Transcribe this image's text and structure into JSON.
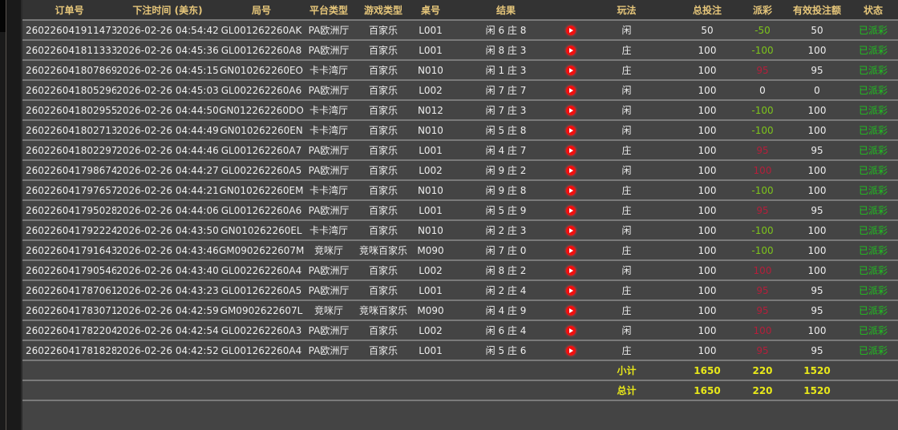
{
  "headers": {
    "order": "订单号",
    "time": "下注时间 (美东)",
    "round": "局号",
    "platform": "平台类型",
    "game": "游戏类型",
    "table": "桌号",
    "result": "结果",
    "bet_type": "玩法",
    "total_bet": "总投注",
    "payout": "派彩",
    "valid_bet": "有效投注额",
    "status": "状态"
  },
  "rows": [
    [
      "260226041911473",
      "2026-02-26 04:54:42",
      "GL001262260AK",
      "PA欧洲厅",
      "百家乐",
      "L001",
      "闲 6 庄 8",
      "闲",
      "50",
      "-50",
      "50",
      "已派彩"
    ],
    [
      "260226041811333",
      "2026-02-26 04:45:36",
      "GL001262260A8",
      "PA欧洲厅",
      "百家乐",
      "L001",
      "闲 8 庄 3",
      "庄",
      "100",
      "-100",
      "100",
      "已派彩"
    ],
    [
      "260226041807869",
      "2026-02-26 04:45:15",
      "GN010262260EO",
      "卡卡湾厅",
      "百家乐",
      "N010",
      "闲 1 庄 3",
      "庄",
      "100",
      "95",
      "95",
      "已派彩"
    ],
    [
      "260226041805296",
      "2026-02-26 04:45:03",
      "GL002262260A6",
      "PA欧洲厅",
      "百家乐",
      "L002",
      "闲 7 庄 7",
      "闲",
      "100",
      "0",
      "0",
      "已派彩"
    ],
    [
      "260226041802955",
      "2026-02-26 04:44:50",
      "GN012262260DO",
      "卡卡湾厅",
      "百家乐",
      "N012",
      "闲 7 庄 3",
      "闲",
      "100",
      "-100",
      "100",
      "已派彩"
    ],
    [
      "260226041802713",
      "2026-02-26 04:44:49",
      "GN010262260EN",
      "卡卡湾厅",
      "百家乐",
      "N010",
      "闲 5 庄 8",
      "闲",
      "100",
      "-100",
      "100",
      "已派彩"
    ],
    [
      "260226041802297",
      "2026-02-26 04:44:46",
      "GL001262260A7",
      "PA欧洲厅",
      "百家乐",
      "L001",
      "闲 4 庄 7",
      "庄",
      "100",
      "95",
      "95",
      "已派彩"
    ],
    [
      "260226041798674",
      "2026-02-26 04:44:27",
      "GL002262260A5",
      "PA欧洲厅",
      "百家乐",
      "L002",
      "闲 9 庄 2",
      "闲",
      "100",
      "100",
      "100",
      "已派彩"
    ],
    [
      "260226041797657",
      "2026-02-26 04:44:21",
      "GN010262260EM",
      "卡卡湾厅",
      "百家乐",
      "N010",
      "闲 9 庄 8",
      "庄",
      "100",
      "-100",
      "100",
      "已派彩"
    ],
    [
      "260226041795028",
      "2026-02-26 04:44:06",
      "GL001262260A6",
      "PA欧洲厅",
      "百家乐",
      "L001",
      "闲 5 庄 9",
      "庄",
      "100",
      "95",
      "95",
      "已派彩"
    ],
    [
      "260226041792224",
      "2026-02-26 04:43:50",
      "GN010262260EL",
      "卡卡湾厅",
      "百家乐",
      "N010",
      "闲 2 庄 3",
      "闲",
      "100",
      "-100",
      "100",
      "已派彩"
    ],
    [
      "260226041791643",
      "2026-02-26 04:43:46",
      "GM0902622607M",
      "竞咪厅",
      "竞咪百家乐",
      "M090",
      "闲 7 庄 0",
      "庄",
      "100",
      "-100",
      "100",
      "已派彩"
    ],
    [
      "260226041790546",
      "2026-02-26 04:43:40",
      "GL002262260A4",
      "PA欧洲厅",
      "百家乐",
      "L002",
      "闲 8 庄 2",
      "闲",
      "100",
      "100",
      "100",
      "已派彩"
    ],
    [
      "260226041787061",
      "2026-02-26 04:43:23",
      "GL001262260A5",
      "PA欧洲厅",
      "百家乐",
      "L001",
      "闲 2 庄 4",
      "庄",
      "100",
      "95",
      "95",
      "已派彩"
    ],
    [
      "260226041783071",
      "2026-02-26 04:42:59",
      "GM0902622607L",
      "竞咪厅",
      "竞咪百家乐",
      "M090",
      "闲 4 庄 9",
      "庄",
      "100",
      "95",
      "95",
      "已派彩"
    ],
    [
      "260226041782204",
      "2026-02-26 04:42:54",
      "GL002262260A3",
      "PA欧洲厅",
      "百家乐",
      "L002",
      "闲 6 庄 4",
      "闲",
      "100",
      "100",
      "100",
      "已派彩"
    ],
    [
      "260226041781828",
      "2026-02-26 04:42:52",
      "GL001262260A4",
      "PA欧洲厅",
      "百家乐",
      "L001",
      "闲 5 庄 6",
      "庄",
      "100",
      "95",
      "95",
      "已派彩"
    ]
  ],
  "subtotal": {
    "label": "小计",
    "total_bet": "1650",
    "payout": "220",
    "valid_bet": "1520"
  },
  "total": {
    "label": "总计",
    "total_bet": "1650",
    "payout": "220",
    "valid_bet": "1520"
  },
  "icons": {
    "replay": "play-video-icon"
  },
  "colors": {
    "header_text": "#e6c67a",
    "negative_payout": "#7dc41c",
    "positive_payout": "#b51e3a",
    "status": "#1fc21f",
    "summary": "#e8e81a"
  }
}
